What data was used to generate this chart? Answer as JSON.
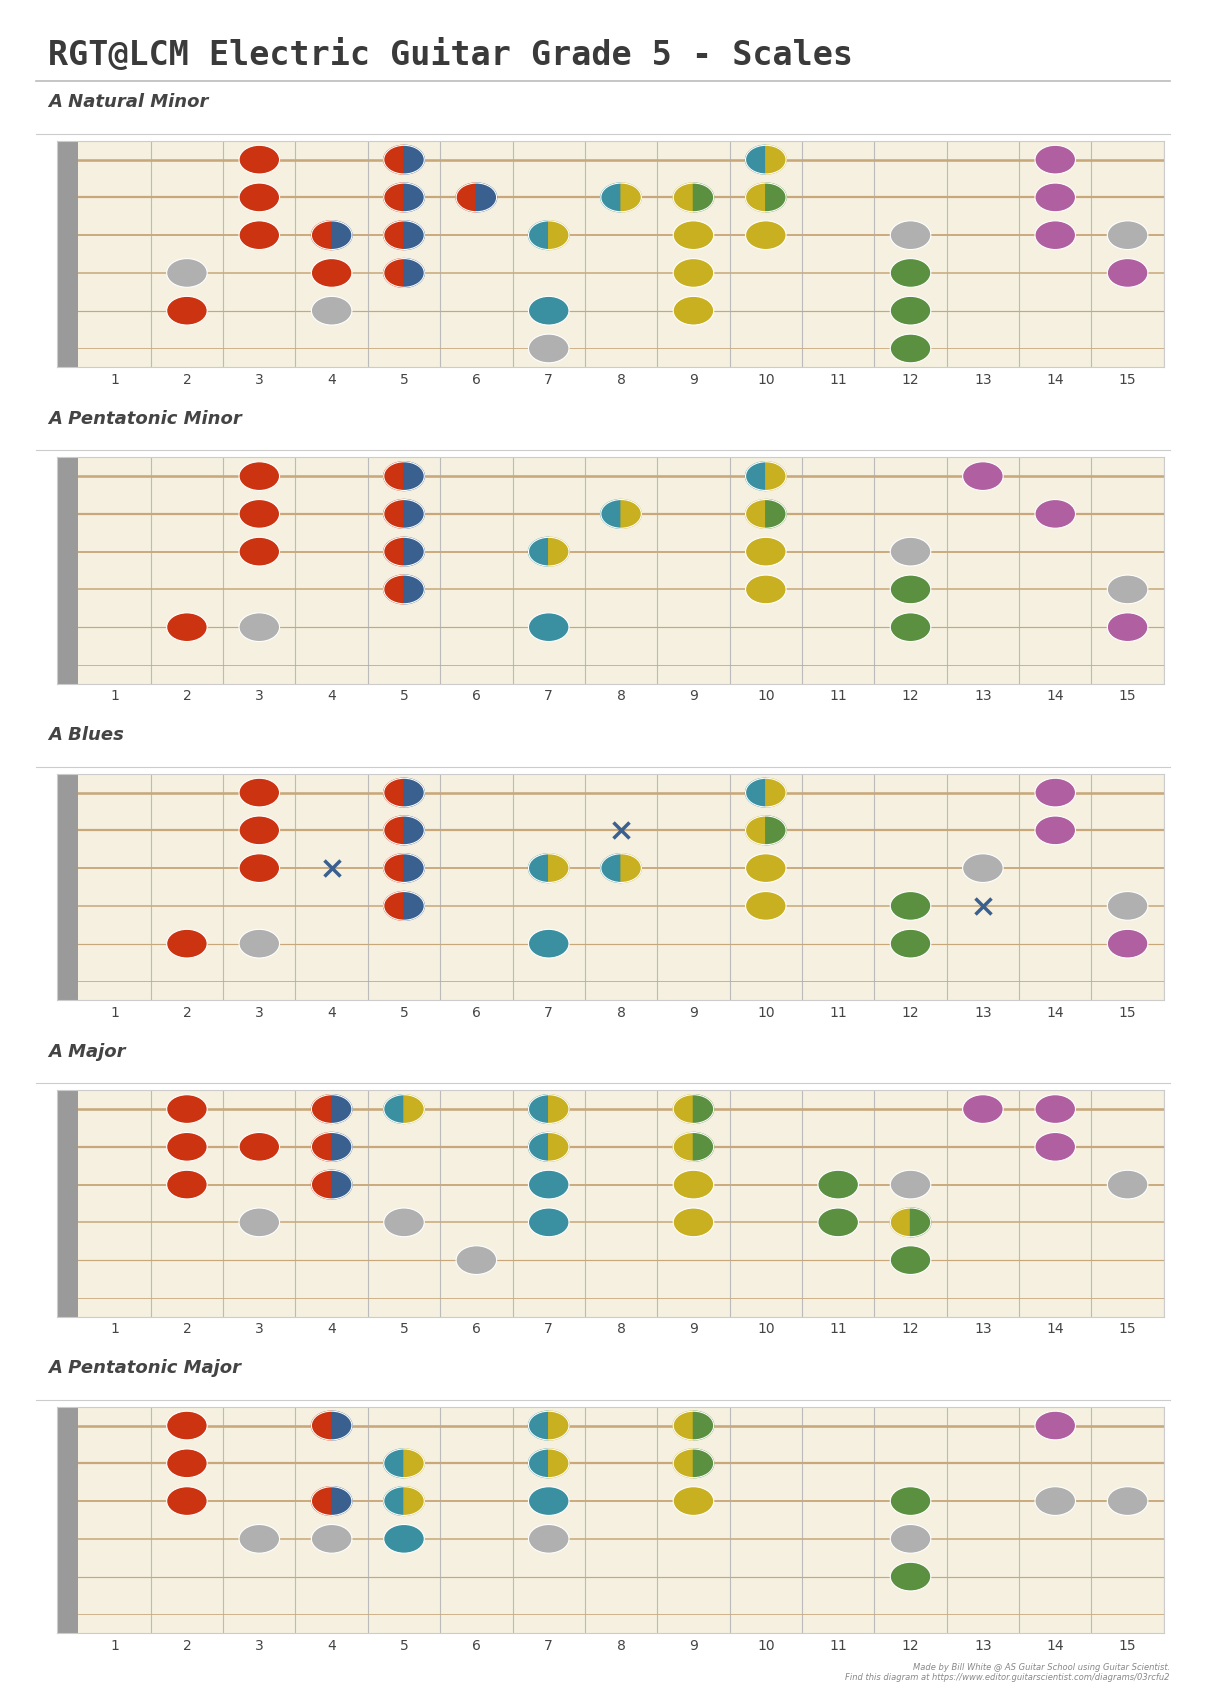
{
  "title": "RGT@LCM Electric Guitar Grade 5 - Scales",
  "title_font": "monospace",
  "title_fontsize": 24,
  "title_color": "#3a3a3a",
  "bg_color": "#ffffff",
  "fretboard_bg": "#f5f0e0",
  "string_color": "#c8a87a",
  "fret_color": "#bbbbbb",
  "nut_color": "#9a9a9a",
  "num_strings": 6,
  "num_frets": 15,
  "footer": "Made by Bill White @ AS Guitar School using Guitar Scientist.\nFind this diagram at https://www.editor.guitarscientist.com/diagrams/03rcfu2",
  "red": "#cc3311",
  "blue": "#3a6090",
  "teal": "#3a90a0",
  "yellow": "#c8b020",
  "green": "#5a9040",
  "purple": "#b060a0",
  "gray": "#b0b0b0",
  "scales": [
    {
      "name": "A Natural Minor",
      "notes": [
        {
          "fret": 2,
          "string": 5,
          "color": "red",
          "type": "dot"
        },
        {
          "fret": 3,
          "string": 1,
          "color": "red",
          "type": "dot"
        },
        {
          "fret": 3,
          "string": 2,
          "color": "red",
          "type": "dot"
        },
        {
          "fret": 3,
          "string": 3,
          "color": "red",
          "type": "dot"
        },
        {
          "fret": 2,
          "string": 4,
          "color": "gray",
          "type": "dot"
        },
        {
          "fret": 4,
          "string": 3,
          "color": "split_red_blue",
          "type": "split_lr"
        },
        {
          "fret": 4,
          "string": 4,
          "color": "red",
          "type": "dot"
        },
        {
          "fret": 4,
          "string": 5,
          "color": "gray",
          "type": "dot"
        },
        {
          "fret": 5,
          "string": 1,
          "color": "split_red_blue",
          "type": "split_lr"
        },
        {
          "fret": 5,
          "string": 2,
          "color": "split_red_blue",
          "type": "split_lr"
        },
        {
          "fret": 5,
          "string": 3,
          "color": "split_red_blue",
          "type": "split_lr"
        },
        {
          "fret": 5,
          "string": 4,
          "color": "split_red_blue",
          "type": "split_lr"
        },
        {
          "fret": 6,
          "string": 2,
          "color": "split_red_blue",
          "type": "split_lr"
        },
        {
          "fret": 7,
          "string": 3,
          "color": "split_teal_yellow",
          "type": "split_lr"
        },
        {
          "fret": 7,
          "string": 5,
          "color": "teal",
          "type": "dot"
        },
        {
          "fret": 7,
          "string": 6,
          "color": "gray",
          "type": "dot"
        },
        {
          "fret": 8,
          "string": 2,
          "color": "split_teal_yellow",
          "type": "split_lr"
        },
        {
          "fret": 9,
          "string": 2,
          "color": "split_yellow_green",
          "type": "split_lr"
        },
        {
          "fret": 9,
          "string": 3,
          "color": "yellow",
          "type": "dot"
        },
        {
          "fret": 9,
          "string": 4,
          "color": "yellow",
          "type": "dot"
        },
        {
          "fret": 9,
          "string": 5,
          "color": "yellow",
          "type": "dot"
        },
        {
          "fret": 10,
          "string": 1,
          "color": "split_teal_yellow",
          "type": "split_lr"
        },
        {
          "fret": 10,
          "string": 2,
          "color": "split_yellow_green",
          "type": "split_lr"
        },
        {
          "fret": 10,
          "string": 3,
          "color": "yellow",
          "type": "dot"
        },
        {
          "fret": 12,
          "string": 3,
          "color": "gray",
          "type": "dot"
        },
        {
          "fret": 12,
          "string": 4,
          "color": "green",
          "type": "dot"
        },
        {
          "fret": 12,
          "string": 5,
          "color": "green",
          "type": "dot"
        },
        {
          "fret": 12,
          "string": 6,
          "color": "green",
          "type": "dot"
        },
        {
          "fret": 14,
          "string": 1,
          "color": "purple",
          "type": "dot"
        },
        {
          "fret": 14,
          "string": 2,
          "color": "purple",
          "type": "dot"
        },
        {
          "fret": 14,
          "string": 3,
          "color": "purple",
          "type": "dot"
        },
        {
          "fret": 15,
          "string": 3,
          "color": "gray",
          "type": "dot"
        },
        {
          "fret": 15,
          "string": 4,
          "color": "purple",
          "type": "dot"
        }
      ]
    },
    {
      "name": "A Pentatonic Minor",
      "notes": [
        {
          "fret": 2,
          "string": 5,
          "color": "red",
          "type": "dot"
        },
        {
          "fret": 3,
          "string": 1,
          "color": "red",
          "type": "dot"
        },
        {
          "fret": 3,
          "string": 2,
          "color": "red",
          "type": "dot"
        },
        {
          "fret": 3,
          "string": 3,
          "color": "red",
          "type": "dot"
        },
        {
          "fret": 3,
          "string": 5,
          "color": "gray",
          "type": "dot"
        },
        {
          "fret": 5,
          "string": 1,
          "color": "split_red_blue",
          "type": "split_lr"
        },
        {
          "fret": 5,
          "string": 2,
          "color": "split_red_blue",
          "type": "split_lr"
        },
        {
          "fret": 5,
          "string": 3,
          "color": "split_red_blue",
          "type": "split_lr"
        },
        {
          "fret": 5,
          "string": 4,
          "color": "split_red_blue",
          "type": "split_lr"
        },
        {
          "fret": 7,
          "string": 3,
          "color": "split_teal_yellow",
          "type": "split_lr"
        },
        {
          "fret": 7,
          "string": 5,
          "color": "teal",
          "type": "dot"
        },
        {
          "fret": 8,
          "string": 2,
          "color": "split_teal_yellow",
          "type": "split_lr"
        },
        {
          "fret": 10,
          "string": 1,
          "color": "split_teal_yellow",
          "type": "split_lr"
        },
        {
          "fret": 10,
          "string": 2,
          "color": "split_yellow_green",
          "type": "split_lr"
        },
        {
          "fret": 10,
          "string": 3,
          "color": "yellow",
          "type": "dot"
        },
        {
          "fret": 10,
          "string": 4,
          "color": "yellow",
          "type": "dot"
        },
        {
          "fret": 12,
          "string": 3,
          "color": "gray",
          "type": "dot"
        },
        {
          "fret": 12,
          "string": 4,
          "color": "green",
          "type": "dot"
        },
        {
          "fret": 12,
          "string": 5,
          "color": "green",
          "type": "dot"
        },
        {
          "fret": 13,
          "string": 1,
          "color": "purple",
          "type": "dot"
        },
        {
          "fret": 14,
          "string": 2,
          "color": "purple",
          "type": "dot"
        },
        {
          "fret": 15,
          "string": 4,
          "color": "gray",
          "type": "dot"
        },
        {
          "fret": 15,
          "string": 5,
          "color": "purple",
          "type": "dot"
        }
      ]
    },
    {
      "name": "A Blues",
      "notes": [
        {
          "fret": 2,
          "string": 5,
          "color": "red",
          "type": "dot"
        },
        {
          "fret": 3,
          "string": 1,
          "color": "red",
          "type": "dot"
        },
        {
          "fret": 3,
          "string": 2,
          "color": "red",
          "type": "dot"
        },
        {
          "fret": 3,
          "string": 3,
          "color": "red",
          "type": "dot"
        },
        {
          "fret": 3,
          "string": 5,
          "color": "gray",
          "type": "dot"
        },
        {
          "fret": 4,
          "string": 3,
          "color": "blue",
          "type": "cross"
        },
        {
          "fret": 5,
          "string": 1,
          "color": "split_red_blue",
          "type": "split_lr"
        },
        {
          "fret": 5,
          "string": 2,
          "color": "split_red_blue",
          "type": "split_lr"
        },
        {
          "fret": 5,
          "string": 3,
          "color": "split_red_blue",
          "type": "split_lr"
        },
        {
          "fret": 5,
          "string": 4,
          "color": "split_red_blue",
          "type": "split_lr"
        },
        {
          "fret": 7,
          "string": 3,
          "color": "split_teal_yellow",
          "type": "split_lr"
        },
        {
          "fret": 7,
          "string": 5,
          "color": "teal",
          "type": "dot"
        },
        {
          "fret": 8,
          "string": 2,
          "color": "blue",
          "type": "cross"
        },
        {
          "fret": 8,
          "string": 3,
          "color": "split_teal_yellow",
          "type": "split_lr"
        },
        {
          "fret": 10,
          "string": 1,
          "color": "split_teal_yellow",
          "type": "split_lr"
        },
        {
          "fret": 10,
          "string": 2,
          "color": "split_yellow_green",
          "type": "split_lr"
        },
        {
          "fret": 10,
          "string": 3,
          "color": "yellow",
          "type": "dot"
        },
        {
          "fret": 10,
          "string": 4,
          "color": "yellow",
          "type": "dot"
        },
        {
          "fret": 12,
          "string": 4,
          "color": "green",
          "type": "dot"
        },
        {
          "fret": 12,
          "string": 5,
          "color": "green",
          "type": "dot"
        },
        {
          "fret": 13,
          "string": 3,
          "color": "gray",
          "type": "dot"
        },
        {
          "fret": 13,
          "string": 4,
          "color": "blue",
          "type": "cross"
        },
        {
          "fret": 14,
          "string": 1,
          "color": "purple",
          "type": "dot"
        },
        {
          "fret": 14,
          "string": 2,
          "color": "purple",
          "type": "dot"
        },
        {
          "fret": 15,
          "string": 4,
          "color": "gray",
          "type": "dot"
        },
        {
          "fret": 15,
          "string": 5,
          "color": "purple",
          "type": "dot"
        }
      ]
    },
    {
      "name": "A Major",
      "notes": [
        {
          "fret": 2,
          "string": 1,
          "color": "red",
          "type": "dot"
        },
        {
          "fret": 2,
          "string": 2,
          "color": "red",
          "type": "dot"
        },
        {
          "fret": 2,
          "string": 3,
          "color": "red",
          "type": "dot"
        },
        {
          "fret": 3,
          "string": 2,
          "color": "red",
          "type": "dot"
        },
        {
          "fret": 3,
          "string": 4,
          "color": "gray",
          "type": "dot"
        },
        {
          "fret": 4,
          "string": 1,
          "color": "split_red_blue",
          "type": "split_lr"
        },
        {
          "fret": 4,
          "string": 2,
          "color": "split_red_blue",
          "type": "split_lr"
        },
        {
          "fret": 4,
          "string": 3,
          "color": "split_red_blue",
          "type": "split_lr"
        },
        {
          "fret": 5,
          "string": 1,
          "color": "split_teal_yellow",
          "type": "split_lr"
        },
        {
          "fret": 5,
          "string": 4,
          "color": "gray",
          "type": "dot"
        },
        {
          "fret": 6,
          "string": 5,
          "color": "gray",
          "type": "dot"
        },
        {
          "fret": 7,
          "string": 1,
          "color": "split_teal_yellow",
          "type": "split_lr"
        },
        {
          "fret": 7,
          "string": 2,
          "color": "split_teal_yellow",
          "type": "split_lr"
        },
        {
          "fret": 7,
          "string": 3,
          "color": "teal",
          "type": "dot"
        },
        {
          "fret": 7,
          "string": 4,
          "color": "teal",
          "type": "dot"
        },
        {
          "fret": 9,
          "string": 1,
          "color": "split_yellow_green",
          "type": "split_lr"
        },
        {
          "fret": 9,
          "string": 2,
          "color": "split_yellow_green",
          "type": "split_lr"
        },
        {
          "fret": 9,
          "string": 3,
          "color": "yellow",
          "type": "dot"
        },
        {
          "fret": 9,
          "string": 4,
          "color": "yellow",
          "type": "dot"
        },
        {
          "fret": 11,
          "string": 3,
          "color": "green",
          "type": "dot"
        },
        {
          "fret": 11,
          "string": 4,
          "color": "green",
          "type": "dot"
        },
        {
          "fret": 12,
          "string": 3,
          "color": "gray",
          "type": "dot"
        },
        {
          "fret": 12,
          "string": 4,
          "color": "split_yellow_green",
          "type": "split_lr"
        },
        {
          "fret": 12,
          "string": 5,
          "color": "green",
          "type": "dot"
        },
        {
          "fret": 13,
          "string": 1,
          "color": "purple",
          "type": "dot"
        },
        {
          "fret": 14,
          "string": 1,
          "color": "purple",
          "type": "dot"
        },
        {
          "fret": 14,
          "string": 2,
          "color": "purple",
          "type": "dot"
        },
        {
          "fret": 15,
          "string": 3,
          "color": "gray",
          "type": "dot"
        }
      ]
    },
    {
      "name": "A Pentatonic Major",
      "notes": [
        {
          "fret": 2,
          "string": 1,
          "color": "red",
          "type": "dot"
        },
        {
          "fret": 2,
          "string": 2,
          "color": "red",
          "type": "dot"
        },
        {
          "fret": 2,
          "string": 3,
          "color": "red",
          "type": "dot"
        },
        {
          "fret": 3,
          "string": 4,
          "color": "gray",
          "type": "dot"
        },
        {
          "fret": 4,
          "string": 1,
          "color": "split_red_blue",
          "type": "split_lr"
        },
        {
          "fret": 4,
          "string": 3,
          "color": "split_red_blue",
          "type": "split_lr"
        },
        {
          "fret": 4,
          "string": 4,
          "color": "gray",
          "type": "dot"
        },
        {
          "fret": 5,
          "string": 2,
          "color": "split_teal_yellow",
          "type": "split_lr"
        },
        {
          "fret": 5,
          "string": 3,
          "color": "split_teal_yellow",
          "type": "split_lr"
        },
        {
          "fret": 5,
          "string": 4,
          "color": "teal",
          "type": "dot"
        },
        {
          "fret": 7,
          "string": 1,
          "color": "split_teal_yellow",
          "type": "split_lr"
        },
        {
          "fret": 7,
          "string": 2,
          "color": "split_teal_yellow",
          "type": "split_lr"
        },
        {
          "fret": 7,
          "string": 3,
          "color": "teal",
          "type": "dot"
        },
        {
          "fret": 7,
          "string": 4,
          "color": "gray",
          "type": "dot"
        },
        {
          "fret": 9,
          "string": 1,
          "color": "split_yellow_green",
          "type": "split_lr"
        },
        {
          "fret": 9,
          "string": 2,
          "color": "split_yellow_green",
          "type": "split_lr"
        },
        {
          "fret": 9,
          "string": 3,
          "color": "yellow",
          "type": "dot"
        },
        {
          "fret": 12,
          "string": 3,
          "color": "green",
          "type": "dot"
        },
        {
          "fret": 12,
          "string": 4,
          "color": "gray",
          "type": "dot"
        },
        {
          "fret": 12,
          "string": 5,
          "color": "green",
          "type": "dot"
        },
        {
          "fret": 14,
          "string": 1,
          "color": "purple",
          "type": "dot"
        },
        {
          "fret": 14,
          "string": 3,
          "color": "gray",
          "type": "dot"
        },
        {
          "fret": 15,
          "string": 3,
          "color": "gray",
          "type": "dot"
        }
      ]
    }
  ]
}
